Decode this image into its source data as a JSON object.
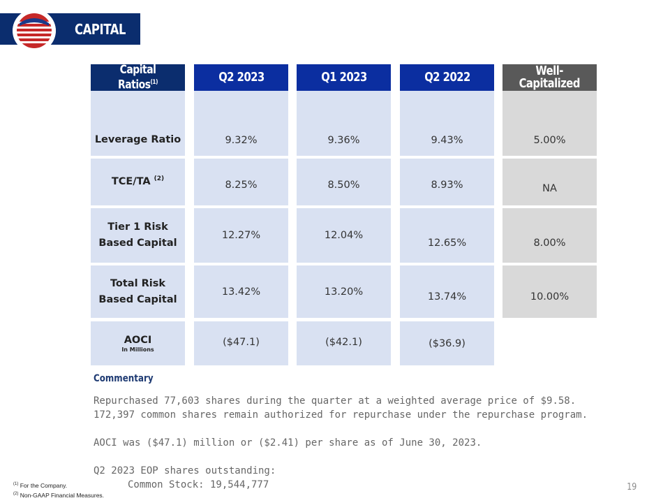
{
  "header": {
    "title": "CAPITAL"
  },
  "table": {
    "label_header": {
      "title": "Capital Ratios",
      "note": "(1)"
    },
    "columns": [
      {
        "title": "Q2 2023",
        "values": [
          "9.32%",
          "8.25%",
          "12.27%",
          "13.42%",
          "($47.1)"
        ]
      },
      {
        "title": "Q1 2023",
        "values": [
          "9.36%",
          "8.50%",
          "12.04%",
          "13.20%",
          "($42.1)"
        ]
      },
      {
        "title": "Q2 2022",
        "values": [
          "9.43%",
          "8.93%",
          "12.65%",
          "13.74%",
          "($36.9)"
        ]
      }
    ],
    "well_capitalized": {
      "title_line1": "Well-",
      "title_line2": "Capitalized",
      "values": [
        "5.00%",
        "NA",
        "8.00%",
        "10.00%"
      ]
    },
    "rows": [
      {
        "label": "Leverage Ratio"
      },
      {
        "label": "TCE/TA",
        "note": "(2)"
      },
      {
        "label_line1": "Tier 1 Risk",
        "label_line2": "Based Capital"
      },
      {
        "label_line1": "Total Risk",
        "label_line2": "Based Capital"
      },
      {
        "label": "AOCI",
        "sub": "In Millions"
      }
    ]
  },
  "commentary": {
    "title": "Commentary",
    "line1": "Repurchased 77,603 shares during the quarter at a weighted average price of $9.58.",
    "line2": "172,397 common shares remain authorized for repurchase under the repurchase program.",
    "line3": "AOCI was ($47.1) million or ($2.41) per share as of June 30, 2023.",
    "line4": "Q2 2023 EOP shares outstanding:",
    "line5": "Common Stock: 19,544,777"
  },
  "footnotes": {
    "note1_mark": "(1)",
    "note1": "For the Company.",
    "note2_mark": "(2)",
    "note2": "Non-GAAP Financial Measures."
  },
  "page_number": "19",
  "colors": {
    "navy": "#0b2d6e",
    "royal_blue": "#0b2ea0",
    "dark_gray": "#595959",
    "cell_blue": "#d9e1f2",
    "cell_gray": "#d9d9d9"
  }
}
